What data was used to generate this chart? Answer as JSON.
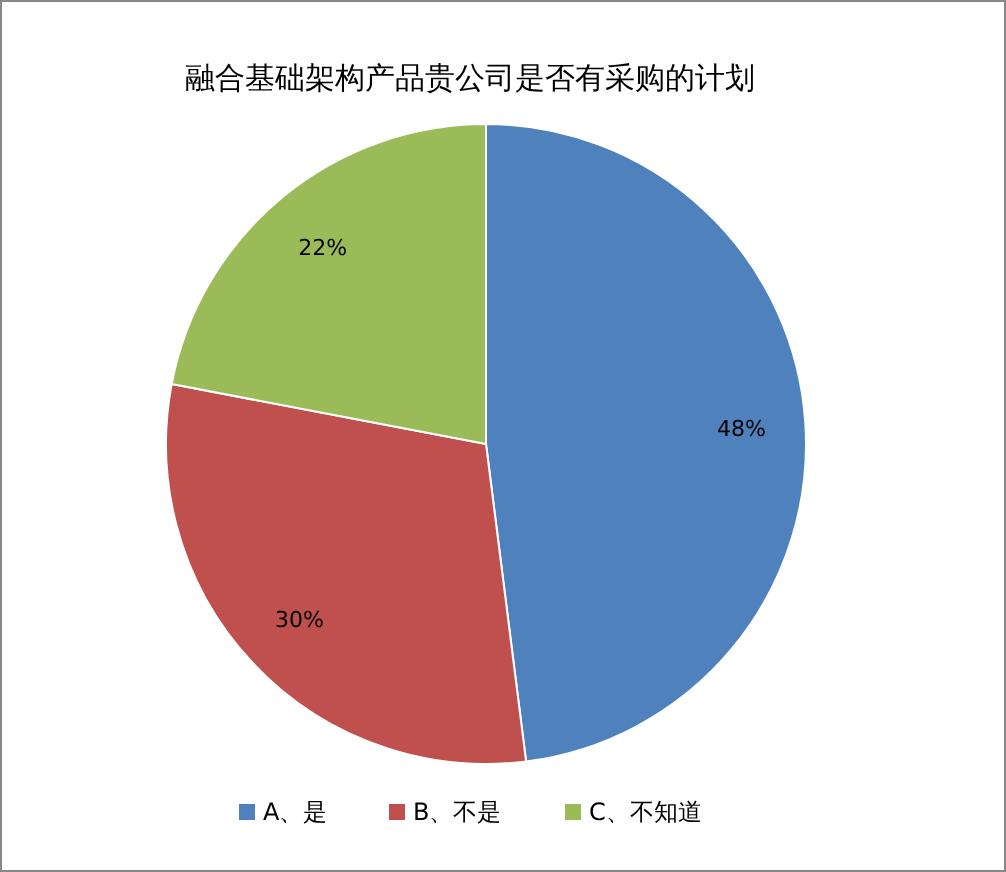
{
  "chart_data": {
    "type": "pie",
    "title": "融合基础架构产品贵公司是否有采购的计划",
    "categories": [
      "A、是",
      "B、不是",
      "C、不知道"
    ],
    "values": [
      48,
      30,
      22
    ],
    "colors": [
      "#4f81bd",
      "#c0504d",
      "#9bbb59"
    ],
    "value_labels": [
      "48%",
      "30%",
      "22%"
    ],
    "legend": "bottom"
  }
}
